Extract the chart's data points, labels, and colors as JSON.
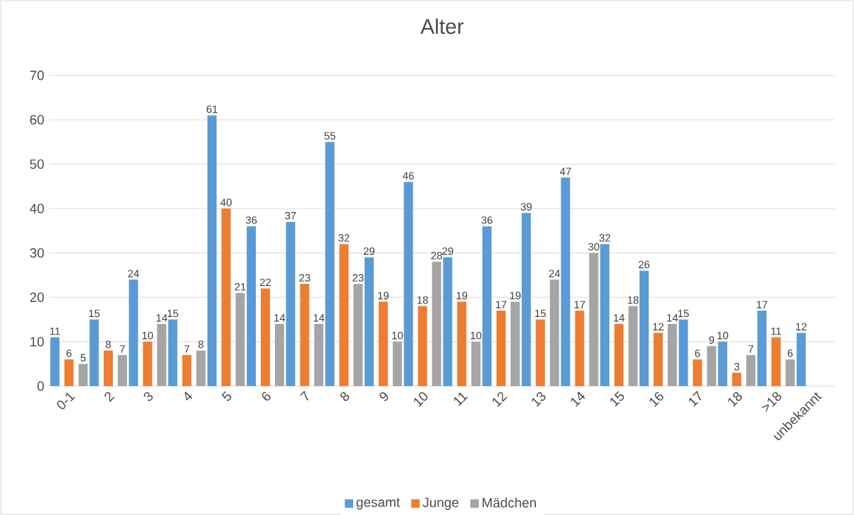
{
  "chart_data": {
    "type": "bar",
    "title": "Alter",
    "categories": [
      "0-1",
      "2",
      "3",
      "4",
      "5",
      "6",
      "7",
      "8",
      "9",
      "10",
      "11",
      "12",
      "13",
      "14",
      "15",
      "16",
      "17",
      "18",
      ">18",
      "unbekannt"
    ],
    "series": [
      {
        "name": "gesamt",
        "color": "#5b9bd5",
        "values": [
          11,
          15,
          24,
          15,
          61,
          36,
          37,
          55,
          29,
          46,
          29,
          36,
          39,
          47,
          32,
          26,
          15,
          10,
          17,
          12
        ]
      },
      {
        "name": "Junge",
        "color": "#ed7d31",
        "values": [
          6,
          8,
          10,
          7,
          40,
          22,
          23,
          32,
          19,
          18,
          19,
          17,
          15,
          17,
          14,
          12,
          6,
          3,
          11,
          null
        ]
      },
      {
        "name": "Mädchen",
        "color": "#a5a5a5",
        "values": [
          5,
          7,
          14,
          8,
          21,
          14,
          14,
          23,
          10,
          28,
          10,
          19,
          24,
          30,
          18,
          14,
          9,
          7,
          6,
          null
        ]
      }
    ],
    "ylim": [
      0,
      70
    ],
    "yticks": [
      0,
      10,
      20,
      30,
      40,
      50,
      60,
      70
    ],
    "grid": "y",
    "legend": "bottom",
    "data_labels": true
  }
}
